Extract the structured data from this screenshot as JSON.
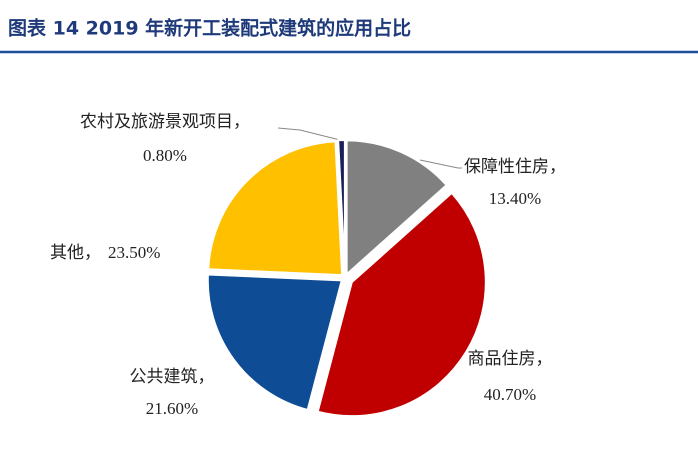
{
  "chart_data": {
    "type": "pie",
    "title": "图表 14 2019 年新开工装配式建筑的应用占比",
    "categories": [
      "保障性住房，",
      "商品住房，",
      "公共建筑，",
      "其他，",
      "农村及旅游景观项目，"
    ],
    "values": [
      13.4,
      40.7,
      21.6,
      23.5,
      0.8
    ],
    "value_labels": [
      "13.40%",
      "40.70%",
      "21.60%",
      "23.50%",
      "0.80%"
    ],
    "colors": [
      "#808080",
      "#c00000",
      "#0f4c96",
      "#ffc000",
      "#1a1f5a"
    ]
  }
}
